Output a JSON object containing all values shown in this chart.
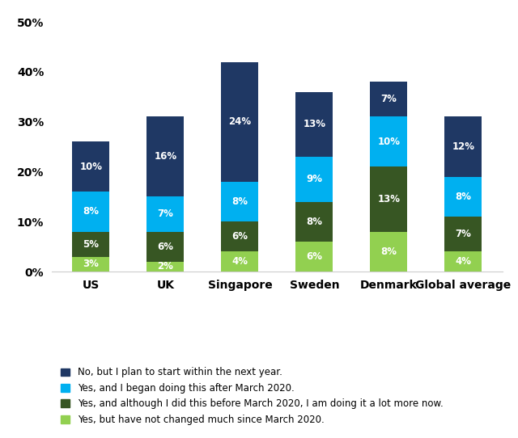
{
  "categories": [
    "US",
    "UK",
    "Singapore",
    "Sweden",
    "Denmark",
    "Global average"
  ],
  "series": [
    {
      "label": "Yes, but have not changed much since March 2020.",
      "color": "#92d050",
      "values": [
        3,
        2,
        4,
        6,
        8,
        4
      ]
    },
    {
      "label": "Yes, and although I did this before March 2020, I am doing it a lot more now.",
      "color": "#375623",
      "values": [
        5,
        6,
        6,
        8,
        13,
        7
      ]
    },
    {
      "label": "Yes, and I began doing this after March 2020.",
      "color": "#00b0f0",
      "values": [
        8,
        7,
        8,
        9,
        10,
        8
      ]
    },
    {
      "label": "No, but I plan to start within the next year.",
      "color": "#1f3864",
      "values": [
        10,
        16,
        24,
        13,
        7,
        12
      ]
    }
  ],
  "legend_order": [
    3,
    2,
    1,
    0
  ],
  "ylim": [
    0,
    50
  ],
  "yticks": [
    0,
    10,
    20,
    30,
    40,
    50
  ],
  "ytick_labels": [
    "0%",
    "10%",
    "20%",
    "30%",
    "40%",
    "50%"
  ],
  "label_color": "white",
  "background_color": "#ffffff",
  "bar_width": 0.5
}
